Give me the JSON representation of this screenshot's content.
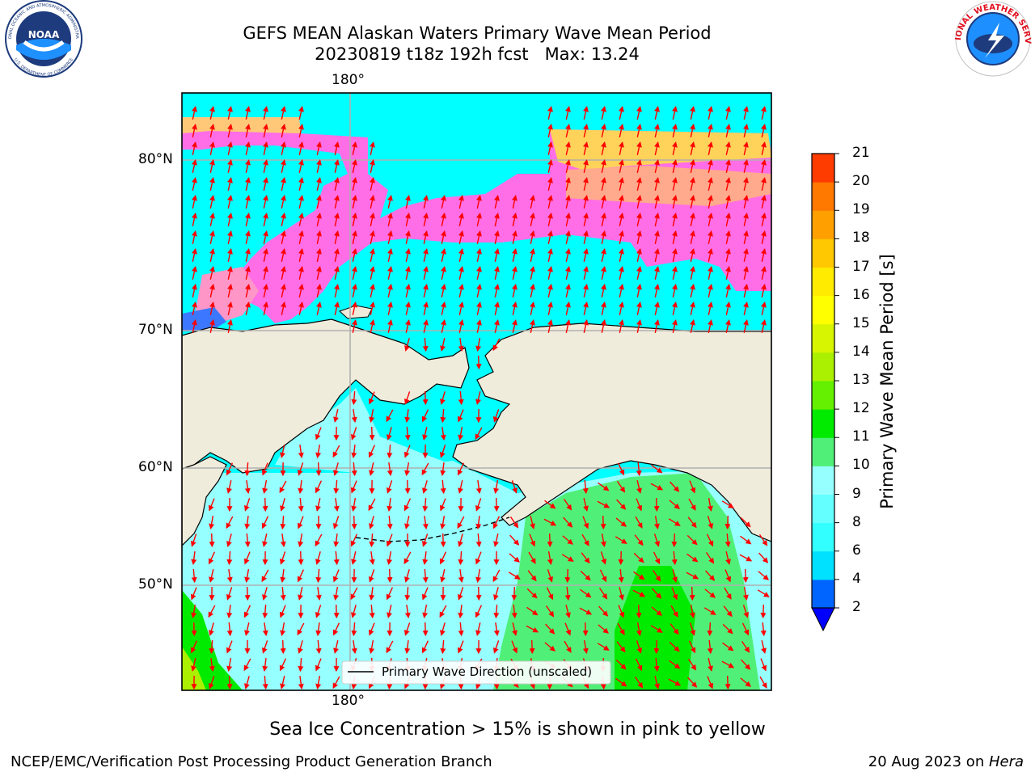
{
  "header": {
    "title_line1": "GEFS MEAN Alaskan Waters Primary Wave Mean Period",
    "title_line2": "20230819 t18z 192h fcst   Max: 13.24"
  },
  "logos": {
    "noara_text": "NOAA",
    "noaa_ring_text": "NATIONAL OCEANIC AND ATMOSPHERIC ADMINISTRATION",
    "noaa_ring_bottom": "U.S. DEPARTMENT OF COMMERCE",
    "nws_ring_text": "NATIONAL WEATHER SERVICE"
  },
  "map": {
    "lon_label_top": "180°",
    "lon_label_bottom": "180°",
    "lat_labels": [
      "80°N",
      "70°N",
      "60°N",
      "50°N"
    ],
    "legend_text": "Primary Wave Direction (unscaled)",
    "land_color": "#efecdc",
    "arrow_color": "#ff0000"
  },
  "colorbar": {
    "label": "Primary Wave Mean Period [s]",
    "ticks": [
      "2",
      "4",
      "6",
      "8",
      "9",
      "10",
      "11",
      "12",
      "13",
      "14",
      "15",
      "16",
      "17",
      "18",
      "19",
      "20",
      "21"
    ],
    "colors": [
      "#0064ff",
      "#00e1ff",
      "#32ffff",
      "#64ffff",
      "#96ffff",
      "#50f078",
      "#00eb00",
      "#64f000",
      "#aaf000",
      "#d7f500",
      "#ffff00",
      "#ffeb00",
      "#ffc800",
      "#ffa000",
      "#ff7800",
      "#ff3c00",
      "#ff0000"
    ],
    "under_color": "#0000ff"
  },
  "notes": {
    "sea_ice": "Sea Ice Concentration > 15% is shown in pink to yellow"
  },
  "footer": {
    "left": "NCEP/EMC/Verification Post Processing Product Generation Branch",
    "right_date": "20 Aug 2023 on ",
    "right_host": "Hera"
  }
}
